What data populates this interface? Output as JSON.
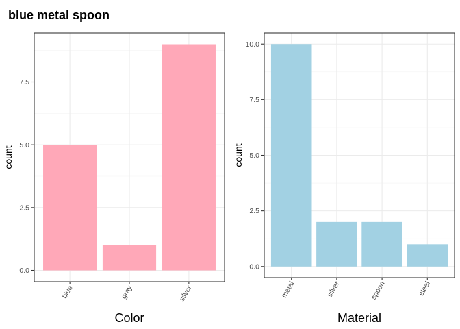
{
  "title": "blue metal spoon",
  "colors": {
    "panel1_bar": "#FFA8B8",
    "panel2_bar": "#A2D1E3"
  },
  "chart_data": [
    {
      "type": "bar",
      "xlabel": "Color",
      "ylabel": "count",
      "categories": [
        "blue",
        "gray",
        "silver"
      ],
      "values": [
        5,
        1,
        9
      ],
      "ylim": [
        -0.45,
        9.45
      ],
      "yticks": [
        0,
        2.5,
        5,
        7.5
      ],
      "ytick_labels": [
        "0.0",
        "2.5",
        "5.0",
        "7.5"
      ],
      "grid": true,
      "bar_color": "#FFA8B8"
    },
    {
      "type": "bar",
      "xlabel": "Material",
      "ylabel": "count",
      "categories": [
        "metal",
        "silver",
        "spoon",
        "steel"
      ],
      "values": [
        10,
        2,
        2,
        1
      ],
      "ylim": [
        -0.5,
        10.5
      ],
      "yticks": [
        0,
        2.5,
        5,
        7.5,
        10
      ],
      "ytick_labels": [
        "0.0",
        "2.5",
        "5.0",
        "7.5",
        "10.0"
      ],
      "grid": true,
      "bar_color": "#A2D1E3"
    }
  ]
}
